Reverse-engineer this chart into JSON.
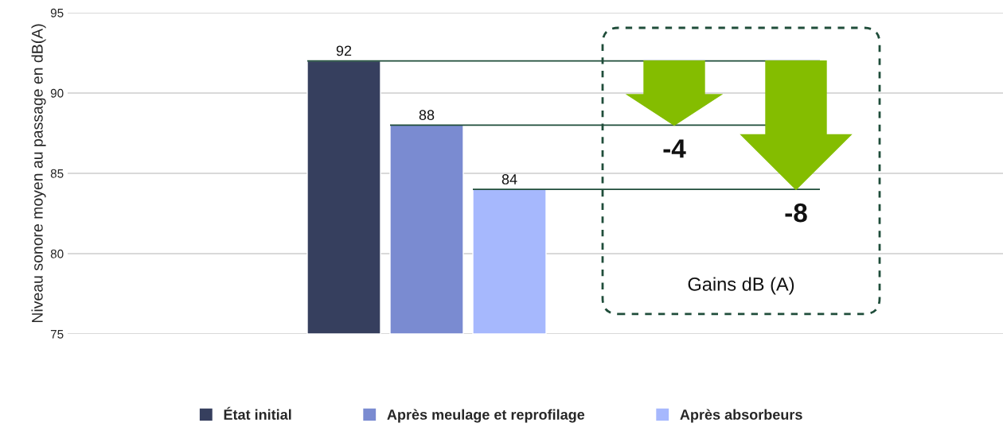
{
  "chart_data": {
    "type": "bar",
    "ylabel": "Niveau sonore moyen au passage en dB(A)",
    "categories": [
      null
    ],
    "series": [
      {
        "name": "État initial",
        "color": "#363f5e",
        "values": [
          92
        ]
      },
      {
        "name": "Après meulage et reprofilage",
        "color": "#7a8bd1",
        "values": [
          88
        ]
      },
      {
        "name": "Après absorbeurs",
        "color": "#a6b8fd",
        "values": [
          84
        ]
      }
    ],
    "ylim": [
      75,
      95
    ],
    "yticks": [
      75,
      80,
      85,
      90,
      95
    ],
    "grid": "y",
    "legend": "bottom",
    "data_labels": true,
    "tick_labels": "y",
    "ref_lines": [
      {
        "axis": "y",
        "value": 92,
        "color": "#1f4d3a"
      },
      {
        "axis": "y",
        "value": 88,
        "color": "#1f4d3a"
      },
      {
        "axis": "y",
        "value": 84,
        "color": "#1f4d3a"
      }
    ],
    "annotations": [
      "-4",
      "-8",
      "Gains dB (A)"
    ]
  }
}
